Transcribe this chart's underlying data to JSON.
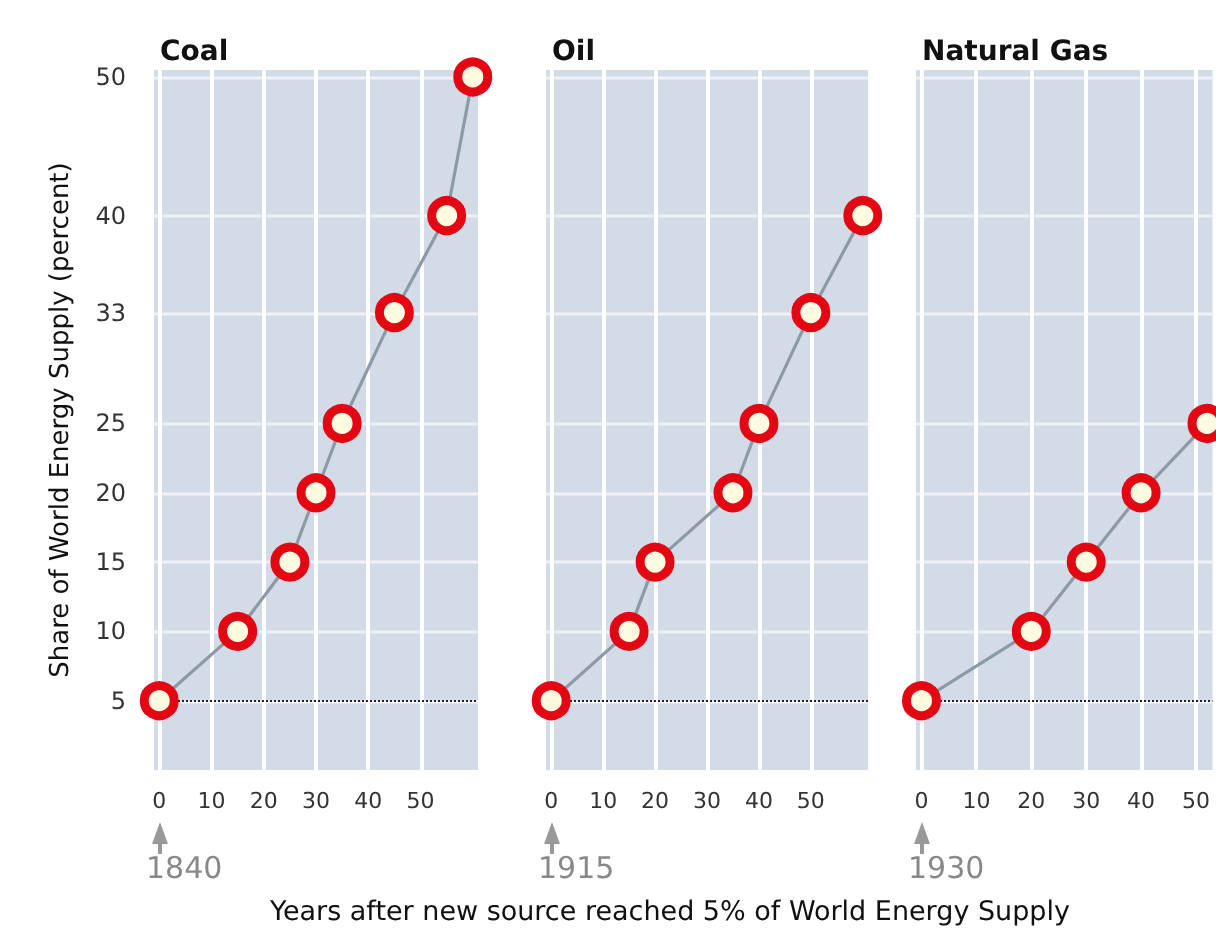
{
  "chart_data": [
    {
      "type": "line",
      "title": "Coal",
      "ylabel": "Share of World Energy Supply (percent)",
      "series": [
        {
          "color": "#e30613",
          "x": [
            0,
            15,
            25,
            30,
            35,
            45,
            55,
            60
          ],
          "values": [
            5,
            10,
            15,
            20,
            25,
            33,
            40,
            50
          ]
        }
      ],
      "xlim": [
        -1,
        61
      ],
      "xticks": [
        0,
        10,
        20,
        30,
        40,
        50
      ],
      "ylim": [
        0,
        50.5
      ],
      "yticks": [
        5,
        10,
        15,
        20,
        25,
        33,
        40,
        50
      ],
      "grid": true,
      "marker": "circle",
      "line_style": "solid",
      "ref_lines": [
        {
          "axis": "y",
          "value": 5,
          "color": "#222222",
          "line_style": "dotted"
        }
      ],
      "annotations": [
        "1840"
      ]
    },
    {
      "type": "line",
      "title": "Oil",
      "xlabel": "Years after new source reached 5% of World Energy Supply",
      "series": [
        {
          "color": "#e30613",
          "x": [
            0,
            15,
            20,
            35,
            40,
            50,
            60
          ],
          "values": [
            5,
            10,
            15,
            20,
            25,
            33,
            40
          ]
        }
      ],
      "xlim": [
        -1,
        61
      ],
      "xticks": [
        0,
        10,
        20,
        30,
        40,
        50
      ],
      "ylim": [
        0,
        50.5
      ],
      "yticks": [
        5,
        10,
        15,
        20,
        25,
        33,
        40,
        50
      ],
      "grid": true,
      "marker": "circle",
      "line_style": "solid",
      "tick_labels": "x",
      "ref_lines": [
        {
          "axis": "y",
          "value": 5,
          "color": "#222222",
          "line_style": "dotted"
        }
      ],
      "annotations": [
        "1915"
      ]
    },
    {
      "type": "line",
      "title": "Natural Gas",
      "series": [
        {
          "color": "#e30613",
          "x": [
            0,
            20,
            30,
            40,
            52
          ],
          "values": [
            5,
            10,
            15,
            20,
            25
          ]
        }
      ],
      "xlim": [
        -1,
        53
      ],
      "xticks": [
        0,
        10,
        20,
        30,
        40,
        50
      ],
      "ylim": [
        0,
        50.5
      ],
      "yticks": [
        5,
        10,
        15,
        20,
        25,
        33,
        40,
        50
      ],
      "grid": true,
      "marker": "circle",
      "line_style": "solid",
      "tick_labels": "x",
      "ref_lines": [
        {
          "axis": "y",
          "value": 5,
          "color": "#222222",
          "line_style": "dotted"
        }
      ],
      "annotations": [
        "1930"
      ]
    }
  ]
}
